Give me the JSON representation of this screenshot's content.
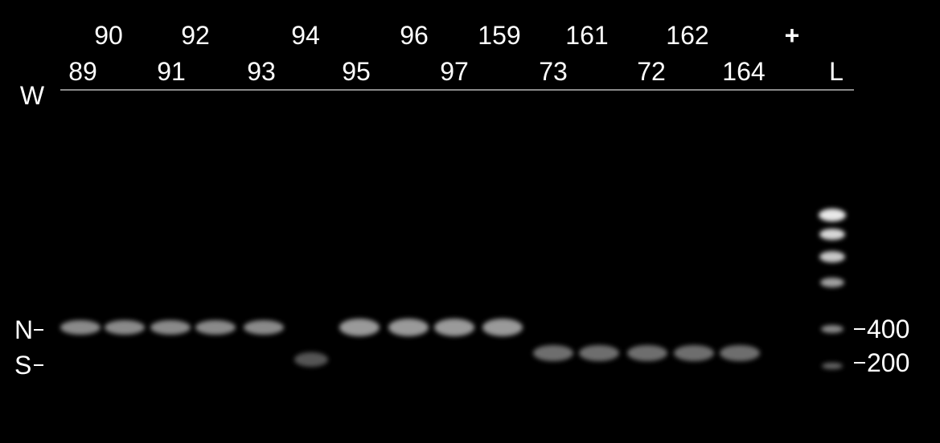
{
  "lane_labels": [
    "W",
    "89",
    "90",
    "91",
    "92",
    "93",
    "94",
    "95",
    "96",
    "97",
    "159",
    "73",
    "161",
    "72",
    "162",
    "164",
    "+",
    "L"
  ],
  "left_markers": [
    "N",
    "S"
  ],
  "right_markers": [
    "400",
    "200"
  ]
}
